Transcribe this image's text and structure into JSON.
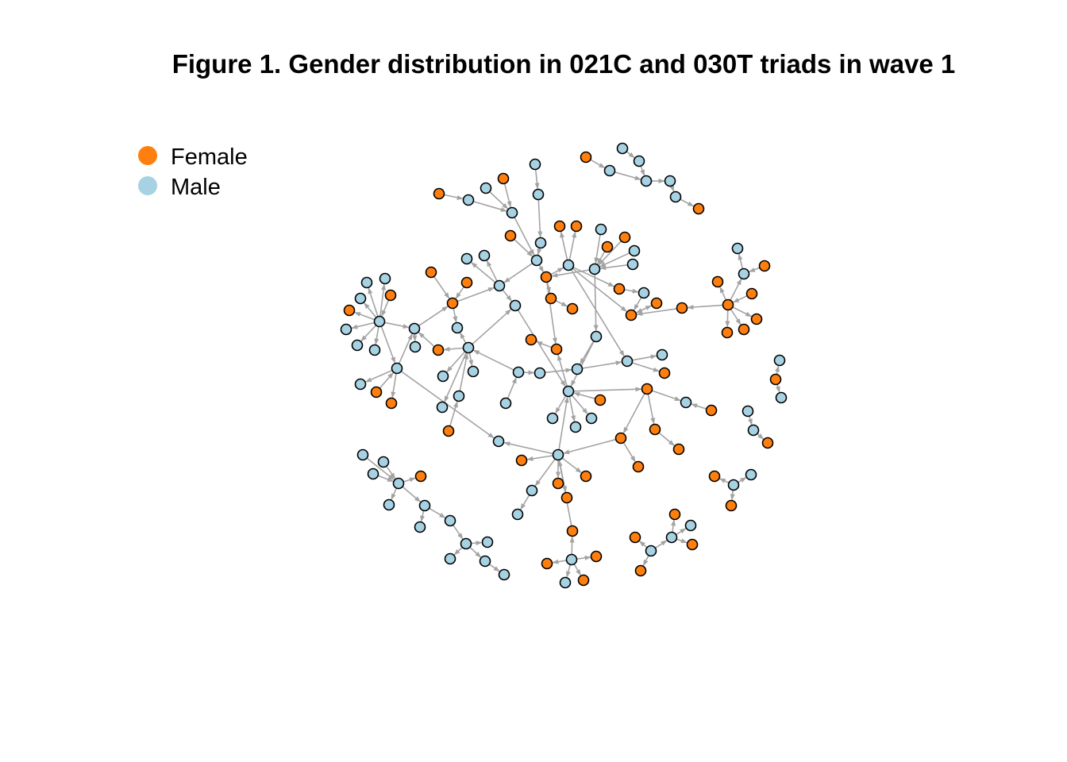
{
  "title": "Figure 1. Gender distribution in 021C and 030T triads in wave 1",
  "legend": [
    {
      "label": "Female",
      "color": "#ff7f0e"
    },
    {
      "label": "Male",
      "color": "#a6d2e3"
    }
  ],
  "colors": {
    "female": "#ff7f0e",
    "male": "#a6d2e3",
    "edge": "#a3a3a3",
    "outline": "#000000"
  },
  "network": {
    "directed": true,
    "node_count": 160,
    "gender_attribute": [
      "female",
      "male"
    ]
  }
}
